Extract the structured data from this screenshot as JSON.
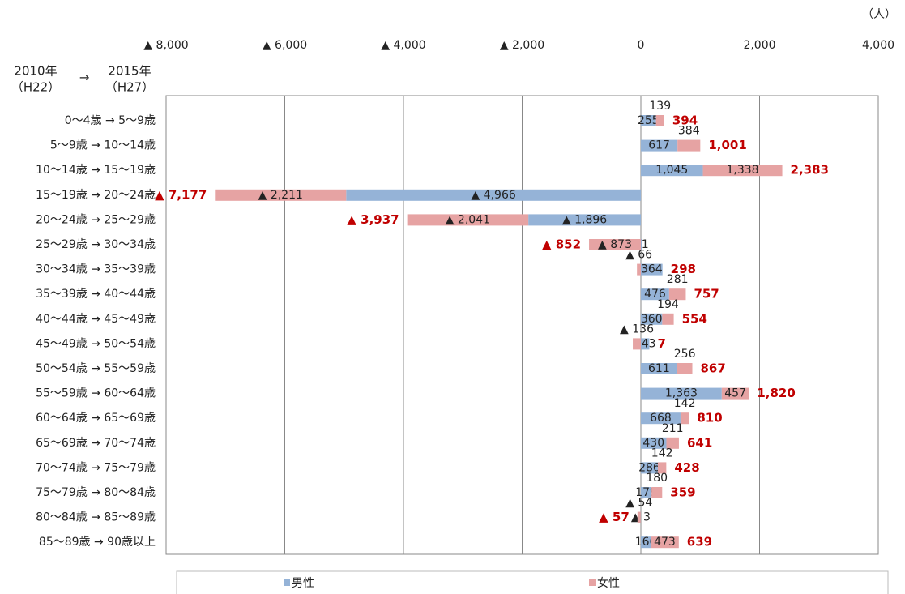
{
  "chart_data": {
    "type": "diverging-stacked-bar",
    "unit": "（人）",
    "header": {
      "from_year": "2010年",
      "arrow": "→",
      "to_year": "2015年",
      "from_era": "（H22）",
      "to_era": "（H27）"
    },
    "categories": [
      "0～4歳 → 5～9歳",
      "5～9歳 → 10～14歳",
      "10～14歳 → 15～19歳",
      "15～19歳 → 20～24歳",
      "20～24歳 → 25～29歳",
      "25～29歳 → 30～34歳",
      "30～34歳 → 35～39歳",
      "35～39歳 → 40～44歳",
      "40～44歳 → 45～49歳",
      "45～49歳 → 50～54歳",
      "50～54歳 → 55～59歳",
      "55～59歳 → 60～64歳",
      "60～64歳 → 65～69歳",
      "65～69歳 → 70～74歳",
      "70～74歳 → 75～79歳",
      "75～79歳 → 80～84歳",
      "80～84歳 → 85～89歳",
      "85～89歳 → 90歳以上"
    ],
    "series": [
      {
        "name": "男性",
        "color": "#95b3d7",
        "values": [
          255,
          617,
          1045,
          -4966,
          -1896,
          21,
          364,
          476,
          360,
          143,
          611,
          1363,
          668,
          430,
          286,
          179,
          -3,
          166
        ],
        "value_labels": [
          "255",
          "617",
          "1,045",
          "▲ 4,966",
          "▲ 1,896",
          "21",
          "364",
          "476",
          "360",
          "143",
          "611",
          "1,363",
          "668",
          "430",
          "286",
          "179",
          "▲ 3",
          "166"
        ]
      },
      {
        "name": "女性",
        "color": "#e6a3a3",
        "values": [
          139,
          384,
          1338,
          -2211,
          -2041,
          -873,
          -66,
          281,
          194,
          -136,
          256,
          457,
          142,
          211,
          142,
          180,
          -54,
          473
        ],
        "value_labels": [
          "139",
          "384",
          "1,338",
          "▲ 2,211",
          "▲ 2,041",
          "▲ 873",
          "▲ 66",
          "281",
          "194",
          "▲ 136",
          "256",
          "457",
          "142",
          "211",
          "142",
          "180",
          "▲ 54",
          "473"
        ]
      }
    ],
    "totals": {
      "color": "#c00000",
      "values": [
        394,
        1001,
        2383,
        -7177,
        -3937,
        -852,
        298,
        757,
        554,
        7,
        867,
        1820,
        810,
        641,
        428,
        359,
        -57,
        639
      ],
      "value_labels": [
        "394",
        "1,001",
        "2,383",
        "▲ 7,177",
        "▲ 3,937",
        "▲ 852",
        "298",
        "757",
        "554",
        "7",
        "867",
        "1,820",
        "810",
        "641",
        "428",
        "359",
        "▲ 57",
        "639"
      ]
    },
    "xlim": [
      -8000,
      4000
    ],
    "xticks": [
      {
        "value": -8000,
        "label": "▲ 8,000"
      },
      {
        "value": -6000,
        "label": "▲ 6,000"
      },
      {
        "value": -4000,
        "label": "▲ 4,000"
      },
      {
        "value": -2000,
        "label": "▲ 2,000"
      },
      0,
      {
        "value": 2000,
        "label": "2,000"
      },
      {
        "value": 4000,
        "label": "4,000"
      }
    ],
    "grid": true
  }
}
